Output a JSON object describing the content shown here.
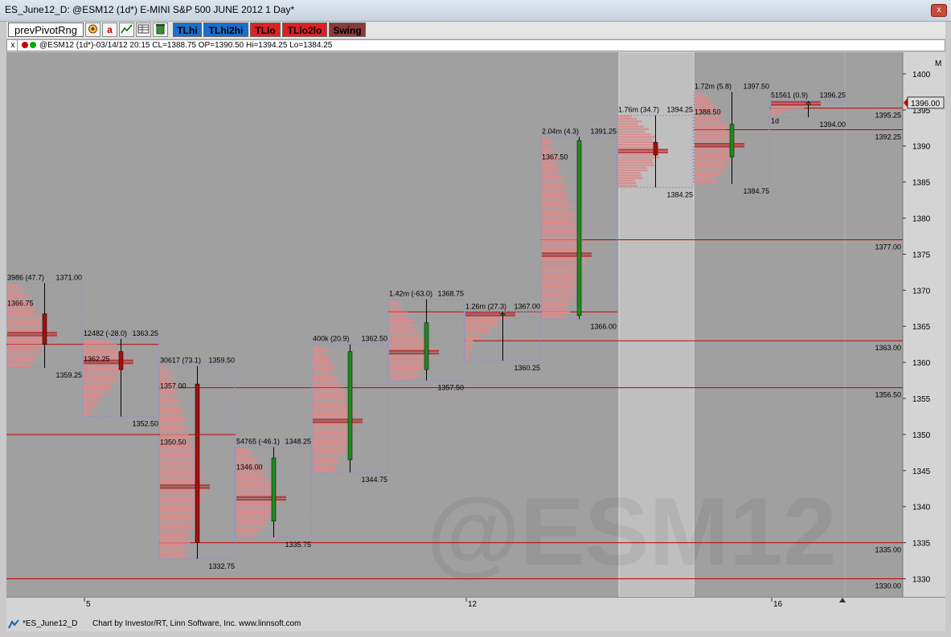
{
  "window": {
    "title": "ES_June12_D: @ESM12 (1d*) E-MINI S&P 500 JUNE 2012 1 Day*",
    "close_glyph": "x"
  },
  "toolbar": {
    "buttons": [
      {
        "label": "prevPivotRng"
      },
      {
        "label": "TLhi"
      },
      {
        "label": "TLhi2hi"
      },
      {
        "label": "TLlo"
      },
      {
        "label": "TLlo2lo"
      },
      {
        "label": "Swing"
      }
    ],
    "icons": [
      "gear-icon",
      "font-a-icon",
      "line-chart-icon",
      "table-icon",
      "trash-icon"
    ],
    "icon_a_glyph": "a"
  },
  "infobar": {
    "close_glyph": "x",
    "quote": "@ESM12 (1d*)-03/14/12 20:15 CL=1388.75 OP=1390.50 Hi=1394.25 Lo=1384.25"
  },
  "colors": {
    "background": "#a0a0a0",
    "bull": "#1e8a1e",
    "bear": "#a01010",
    "level_line": "#c00000",
    "profile": "#d98c8c",
    "profile_dark": "#b83838",
    "highlight": "#bfbfbf"
  },
  "watermark": "@ESM12",
  "chart_data": {
    "type": "candlestick with market profile",
    "y_axis": {
      "ticks": [
        "1330",
        "1335",
        "1340",
        "1345",
        "1350",
        "1355",
        "1360",
        "1365",
        "1370",
        "1375",
        "1380",
        "1385",
        "1390",
        "1395",
        "1400"
      ],
      "range": [
        1327.5,
        1403
      ],
      "current_price": "1396.00",
      "marker": "M"
    },
    "x_axis": {
      "labels": [
        {
          "text": "5",
          "day": 1
        },
        {
          "text": "12",
          "day": 6
        },
        {
          "text": "16",
          "day": 10
        }
      ]
    },
    "sessions": [
      {
        "day": 0,
        "open": 1366.75,
        "close": 1362.5,
        "high": 1371.0,
        "low": 1359.25,
        "stat": "3986 (47.7)",
        "high_label": "1371.00",
        "low_label": "1359.25",
        "left_label": "1366.75"
      },
      {
        "day": 1,
        "open": 1361.5,
        "close": 1359.0,
        "high": 1363.25,
        "low": 1352.5,
        "stat": "12482 (-28.0)",
        "high_label": "1363.25",
        "low_label": "1352.50",
        "left_label": "1362.25"
      },
      {
        "day": 2,
        "open": 1357.0,
        "close": 1335.0,
        "high": 1359.5,
        "low": 1332.75,
        "stat": "30617 (73.1)",
        "high_label": "1359.50",
        "low_label": "1332.75",
        "left_label": "1357.00",
        "left_label2": "1350.50"
      },
      {
        "day": 3,
        "open": 1338.0,
        "close": 1346.75,
        "high": 1348.25,
        "low": 1335.75,
        "stat": "54765 (-46.1)",
        "high_label": "1348.25",
        "low_label": "1335.75",
        "left_label": "1346.00"
      },
      {
        "day": 4,
        "open": 1346.5,
        "close": 1361.5,
        "high": 1362.5,
        "low": 1344.75,
        "stat": "400k (20.9)",
        "high_label": "1362.50",
        "low_label": "1344.75"
      },
      {
        "day": 5,
        "open": 1359.0,
        "close": 1365.5,
        "high": 1368.75,
        "low": 1357.5,
        "stat": "1.42m (-63.0)",
        "high_label": "1368.75",
        "low_label": "1357.50"
      },
      {
        "day": 6,
        "open": 1366.75,
        "close": 1366.75,
        "high": 1367.0,
        "low": 1360.25,
        "stat": "1.26m (27.3)",
        "high_label": "1367.00",
        "low_label": "1360.25"
      },
      {
        "day": 7,
        "open": 1366.5,
        "close": 1390.75,
        "high": 1391.25,
        "low": 1366.0,
        "stat": "2.04m (4.3)",
        "high_label": "1391.25",
        "low_label": "1366.00",
        "left_label": "1367.50"
      },
      {
        "day": 8,
        "open": 1390.5,
        "close": 1388.75,
        "high": 1394.25,
        "low": 1384.25,
        "stat": "1.76m (34.7)",
        "high_label": "1394.25",
        "low_label": "1384.25",
        "highlight": true
      },
      {
        "day": 9,
        "open": 1388.5,
        "close": 1393.0,
        "high": 1397.5,
        "low": 1384.75,
        "stat": "1.72m (5.8)",
        "high_label": "1397.50",
        "low_label": "1384.75",
        "left_label": "1388.50"
      },
      {
        "day": 10,
        "open": 1395.75,
        "close": 1396.0,
        "high": 1396.25,
        "low": 1394.0,
        "stat": "51561 (0.9)",
        "high_label": "1396.25",
        "low_label": "1394.00",
        "left_label": "1d"
      }
    ],
    "levels": [
      {
        "price": 1395.25,
        "label": "1395.25",
        "from_day": 10
      },
      {
        "price": 1392.25,
        "label": "1392.25",
        "from_day": 9
      },
      {
        "price": 1377.0,
        "label": "1377.00",
        "from_day": 7
      },
      {
        "price": 1367.0,
        "label": "",
        "from_day": 5,
        "to_day": 7
      },
      {
        "price": 1363.0,
        "label": "1363.00",
        "from_day": 6
      },
      {
        "price": 1356.5,
        "label": "1356.50",
        "from_day": 2
      },
      {
        "price": 1350.0,
        "label": "",
        "from_day": 0,
        "to_day": 2
      },
      {
        "price": 1335.0,
        "label": "1335.00",
        "from_day": 2
      },
      {
        "price": 1330.0,
        "label": "1330.00",
        "from_day": 0
      },
      {
        "price": 1362.5,
        "label": "",
        "from_day": 0,
        "to_day": 1
      }
    ]
  },
  "status": {
    "file": "*ES_June12_D",
    "credit": "Chart by Investor/RT, Linn Software, Inc. www.linnsoft.com"
  }
}
